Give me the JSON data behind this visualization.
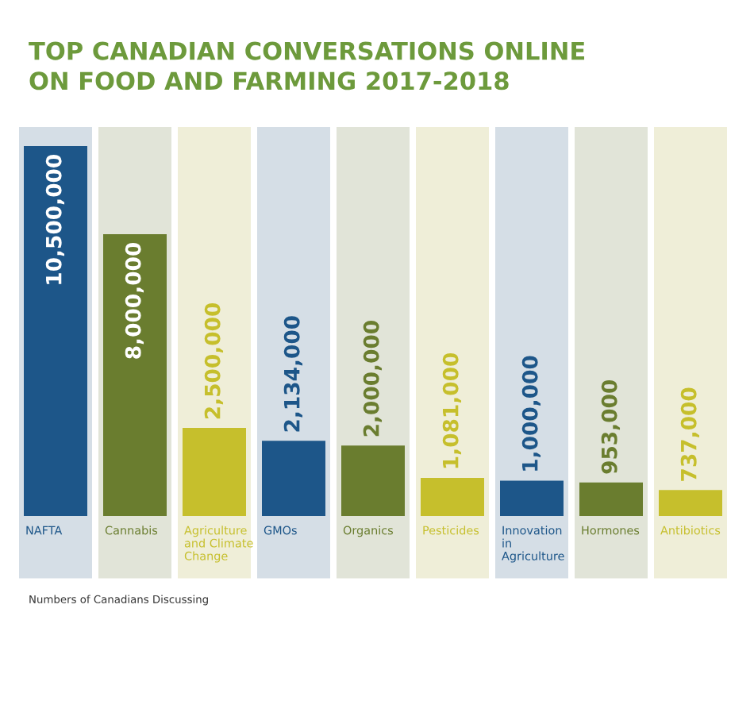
{
  "chart_data": {
    "type": "bar",
    "title": "TOP CANADIAN CONVERSATIONS ONLINE\nON FOOD AND FARMING 2017-2018",
    "categories": [
      "NAFTA",
      "Cannabis",
      "Agriculture\nand Climate\nChange",
      "GMOs",
      "Organics",
      "Pesticides",
      "Innovation\nin\nAgriculture",
      "Hormones",
      "Antibiotics"
    ],
    "values": [
      10500000,
      8000000,
      2500000,
      2134000,
      2000000,
      1081000,
      1000000,
      953000,
      737000
    ],
    "colors": [
      "#1d5689",
      "#6a7d2f",
      "#c6bf2c",
      "#1d5689",
      "#6a7d2f",
      "#c6bf2c",
      "#1d5689",
      "#6a7d2f",
      "#c6bf2c"
    ],
    "value_labels": [
      "10,500,000",
      "8,000,000",
      "2,500,000",
      "2,134,000",
      "2,000,000",
      "1,081,000",
      "1,000,000",
      "953,000",
      "737,000"
    ],
    "annotations": [
      "Numbers of Canadians Discussing"
    ]
  }
}
